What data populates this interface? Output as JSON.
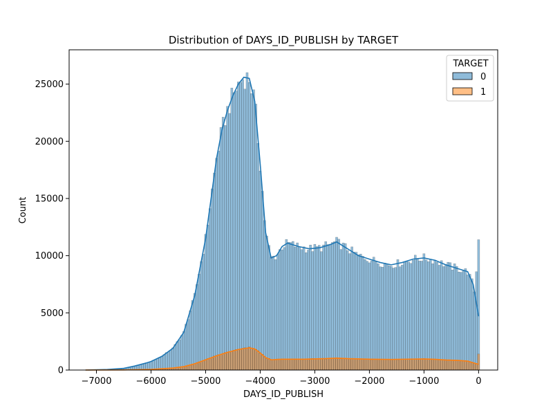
{
  "chart_data": {
    "type": "bar",
    "title": "Distribution of DAYS_ID_PUBLISH by TARGET",
    "xlabel": "DAYS_ID_PUBLISH",
    "ylabel": "Count",
    "xlim": [
      -7500,
      350
    ],
    "ylim": [
      0,
      28000
    ],
    "x_ticks": [
      -7000,
      -6000,
      -5000,
      -4000,
      -3000,
      -2000,
      -1000,
      0
    ],
    "y_ticks": [
      0,
      5000,
      10000,
      15000,
      20000,
      25000
    ],
    "grid": false,
    "legend": {
      "title": "TARGET",
      "placement": "top-right",
      "entries": [
        "0",
        "1"
      ]
    },
    "series": [
      {
        "name": "0",
        "color": "#1f77b4",
        "curve_points": [
          [
            -7200,
            0
          ],
          [
            -6800,
            50
          ],
          [
            -6500,
            150
          ],
          [
            -6300,
            350
          ],
          [
            -6100,
            600
          ],
          [
            -6000,
            750
          ],
          [
            -5800,
            1200
          ],
          [
            -5600,
            1900
          ],
          [
            -5400,
            3300
          ],
          [
            -5200,
            6500
          ],
          [
            -5000,
            11500
          ],
          [
            -4900,
            15000
          ],
          [
            -4800,
            18500
          ],
          [
            -4700,
            21000
          ],
          [
            -4600,
            22700
          ],
          [
            -4500,
            24000
          ],
          [
            -4400,
            25000
          ],
          [
            -4300,
            25600
          ],
          [
            -4200,
            25500
          ],
          [
            -4100,
            23500
          ],
          [
            -4000,
            18000
          ],
          [
            -3900,
            12000
          ],
          [
            -3800,
            9800
          ],
          [
            -3700,
            10000
          ],
          [
            -3600,
            10800
          ],
          [
            -3500,
            11100
          ],
          [
            -3300,
            10800
          ],
          [
            -3100,
            10600
          ],
          [
            -2900,
            10700
          ],
          [
            -2700,
            11000
          ],
          [
            -2600,
            11200
          ],
          [
            -2400,
            10600
          ],
          [
            -2200,
            10000
          ],
          [
            -2000,
            9700
          ],
          [
            -1800,
            9400
          ],
          [
            -1600,
            9200
          ],
          [
            -1400,
            9400
          ],
          [
            -1200,
            9700
          ],
          [
            -1000,
            9800
          ],
          [
            -800,
            9600
          ],
          [
            -600,
            9200
          ],
          [
            -400,
            8900
          ],
          [
            -200,
            8600
          ],
          [
            -100,
            7500
          ],
          [
            0,
            4700
          ]
        ],
        "edge_spikes": [
          [
            0,
            11400
          ],
          [
            -40,
            8600
          ]
        ]
      },
      {
        "name": "1",
        "color": "#ff7f0e",
        "curve_points": [
          [
            -7200,
            0
          ],
          [
            -6500,
            10
          ],
          [
            -6000,
            60
          ],
          [
            -5600,
            180
          ],
          [
            -5400,
            300
          ],
          [
            -5200,
            550
          ],
          [
            -5000,
            900
          ],
          [
            -4800,
            1250
          ],
          [
            -4600,
            1550
          ],
          [
            -4400,
            1800
          ],
          [
            -4200,
            1950
          ],
          [
            -4100,
            1850
          ],
          [
            -4000,
            1500
          ],
          [
            -3900,
            1100
          ],
          [
            -3800,
            900
          ],
          [
            -3600,
            950
          ],
          [
            -3200,
            950
          ],
          [
            -2800,
            1000
          ],
          [
            -2600,
            1050
          ],
          [
            -2400,
            1000
          ],
          [
            -2000,
            950
          ],
          [
            -1600,
            930
          ],
          [
            -1200,
            960
          ],
          [
            -1000,
            970
          ],
          [
            -800,
            940
          ],
          [
            -600,
            880
          ],
          [
            -400,
            850
          ],
          [
            -200,
            780
          ],
          [
            0,
            500
          ]
        ],
        "edge_spikes": [
          [
            0,
            1400
          ]
        ]
      }
    ]
  }
}
